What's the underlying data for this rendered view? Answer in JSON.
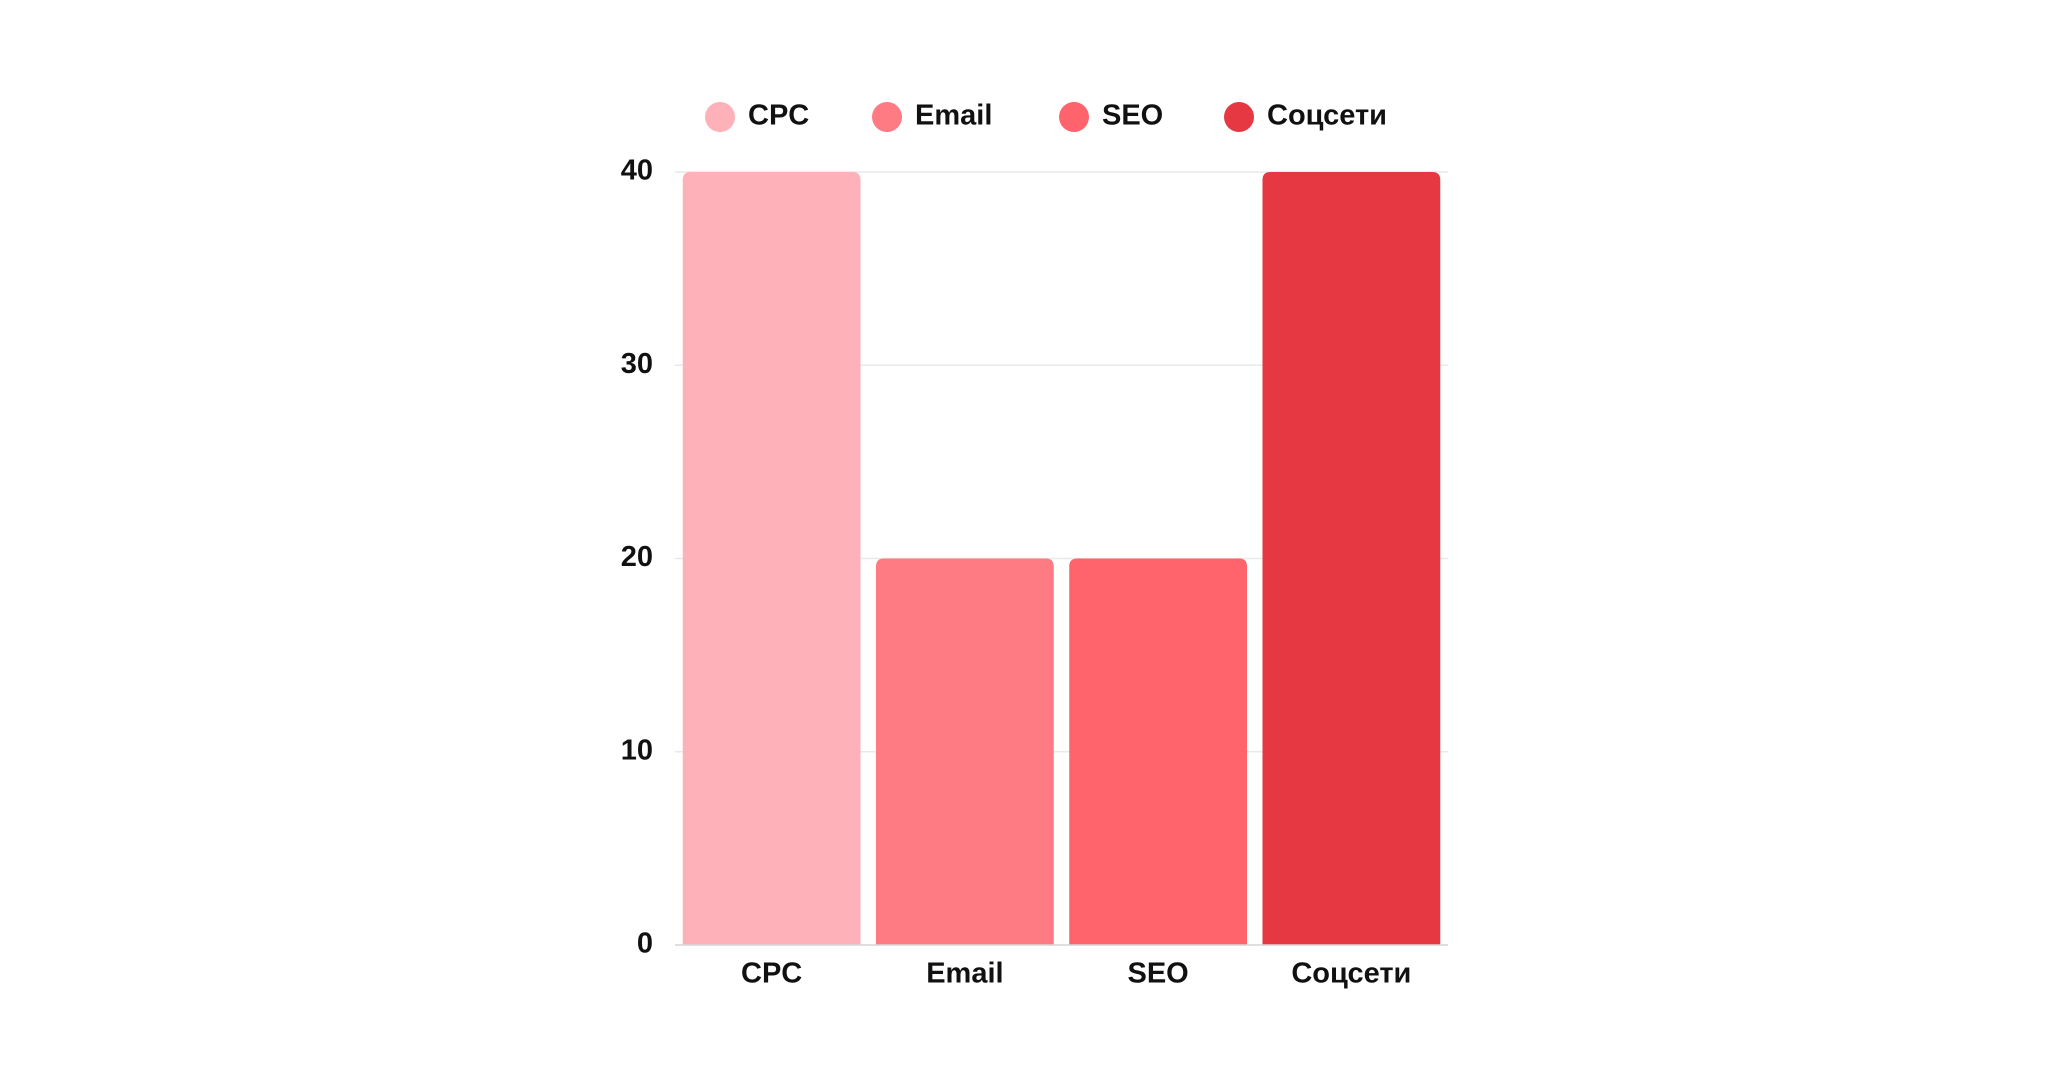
{
  "chart_data": {
    "type": "bar",
    "categories": [
      "CPC",
      "Email",
      "SEO",
      "Соцсети"
    ],
    "values": [
      40,
      20,
      20,
      40
    ],
    "colors": [
      "#feb1b8",
      "#ff7b83",
      "#ff636b",
      "#e63843"
    ],
    "ylim": [
      0,
      40
    ],
    "yticks": [
      0,
      10,
      20,
      30,
      40
    ],
    "grid": true,
    "legend": "top"
  }
}
